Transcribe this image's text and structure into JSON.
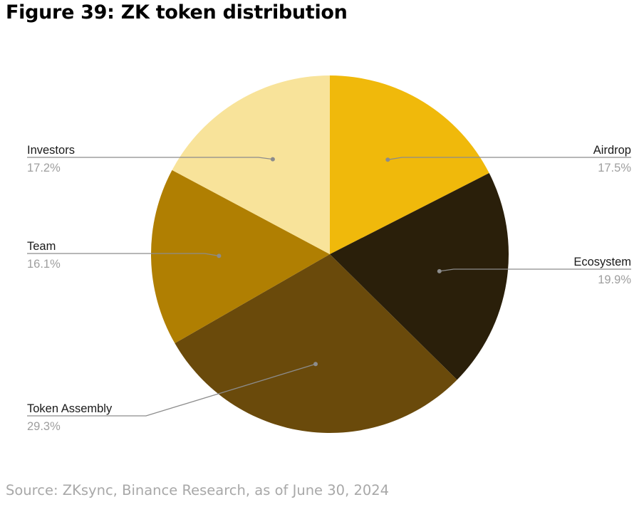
{
  "title": "Figure 39: ZK token distribution",
  "source": "Source: ZKsync, Binance Research, as of June 30, 2024",
  "chart_data": {
    "type": "pie",
    "title": "Figure 39: ZK token distribution",
    "start": "12 o'clock",
    "direction": "clockwise",
    "slices": [
      {
        "label": "Airdrop",
        "value": 17.5,
        "display": "17.5%",
        "color": "#F0B90B",
        "side": "right"
      },
      {
        "label": "Ecosystem",
        "value": 19.9,
        "display": "19.9%",
        "color": "#2A1F0A",
        "side": "right"
      },
      {
        "label": "Token Assembly",
        "value": 29.3,
        "display": "29.3%",
        "color": "#6A4A0B",
        "side": "left"
      },
      {
        "label": "Team",
        "value": 16.1,
        "display": "16.1%",
        "color": "#B07F02",
        "side": "left"
      },
      {
        "label": "Investors",
        "value": 17.2,
        "display": "17.2%",
        "color": "#F8E39A",
        "side": "left"
      }
    ],
    "label_color": "#1a1a1a",
    "value_color": "#9e9e9e",
    "leader_color": "#8c8c8c",
    "legend": "none"
  }
}
